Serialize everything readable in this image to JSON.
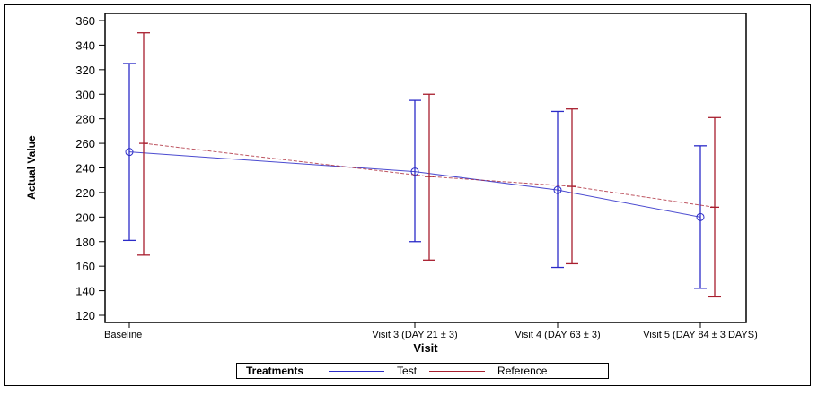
{
  "chart_data": {
    "type": "line",
    "title": "",
    "xlabel": "Visit",
    "ylabel": "Actual Value",
    "ylim": [
      120,
      360
    ],
    "yticks": [
      120,
      140,
      160,
      180,
      200,
      220,
      240,
      260,
      280,
      300,
      320,
      340,
      360
    ],
    "grid": false,
    "categories": [
      "Baseline",
      "Visit 3 (DAY 21 ± 3)",
      "Visit 4 (DAY 63 ± 3)",
      "Visit 5 (DAY 84 ± 3 DAYS)"
    ],
    "legend": {
      "title": "Treatments",
      "position": "bottom",
      "entries": [
        "Test",
        "Reference"
      ]
    },
    "series": [
      {
        "name": "Test",
        "color": "#2b2bc8",
        "marker": "circle",
        "values": [
          253,
          237,
          222,
          200
        ],
        "lower": [
          181,
          180,
          159,
          142
        ],
        "upper": [
          325,
          295,
          286,
          258
        ]
      },
      {
        "name": "Reference",
        "color": "#a81e2e",
        "marker": "none",
        "line_style": "dashed",
        "values": [
          260,
          233,
          225,
          208
        ],
        "lower": [
          169,
          165,
          162,
          135
        ],
        "upper": [
          350,
          300,
          288,
          281
        ]
      }
    ]
  },
  "axis": {
    "x_title": "Visit",
    "y_title": "Actual Value"
  },
  "legend": {
    "title": "Treatments",
    "test_label": "Test",
    "reference_label": "Reference"
  }
}
